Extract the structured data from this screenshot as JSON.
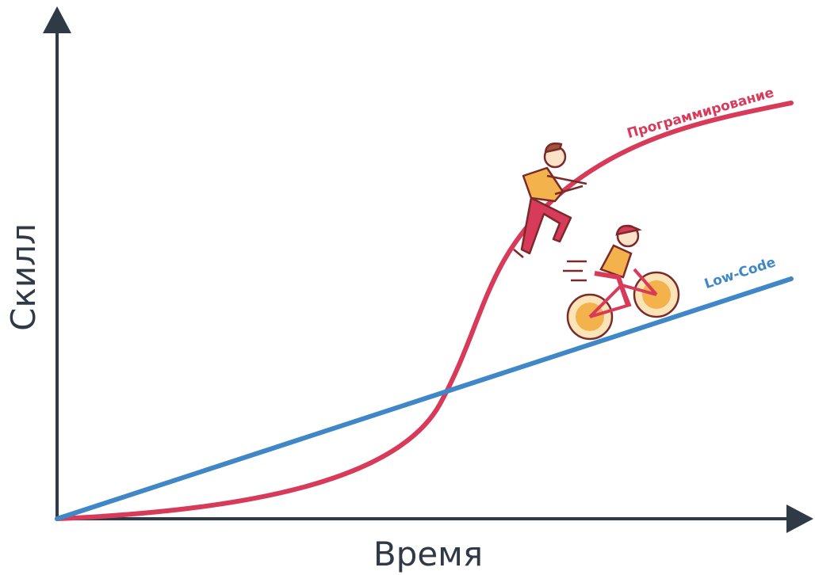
{
  "y_axis": {
    "label": "Скилл"
  },
  "x_axis": {
    "label": "Время"
  },
  "curves": [
    {
      "label": "Программирование"
    },
    {
      "label": "Low-Code"
    }
  ]
}
